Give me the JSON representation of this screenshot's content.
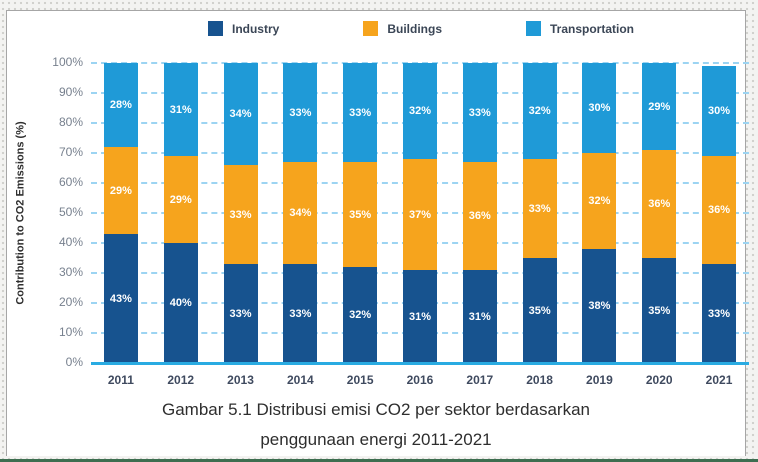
{
  "legend": {
    "items": [
      {
        "label": "Industry",
        "color": "#17538f"
      },
      {
        "label": "Buildings",
        "color": "#f6a41d"
      },
      {
        "label": "Transportation",
        "color": "#1f9ad7"
      }
    ]
  },
  "chart_data": {
    "type": "bar",
    "stacked": true,
    "orientation": "vertical",
    "categories": [
      "2011",
      "2012",
      "2013",
      "2014",
      "2015",
      "2016",
      "2017",
      "2018",
      "2019",
      "2020",
      "2021"
    ],
    "series": [
      {
        "name": "Industry",
        "color": "#17538f",
        "values": [
          43,
          40,
          33,
          33,
          32,
          31,
          31,
          35,
          38,
          35,
          33
        ]
      },
      {
        "name": "Buildings",
        "color": "#f6a41d",
        "values": [
          29,
          29,
          33,
          34,
          35,
          37,
          36,
          33,
          32,
          36,
          36
        ]
      },
      {
        "name": "Transportation",
        "color": "#1f9ad7",
        "values": [
          28,
          31,
          34,
          33,
          33,
          32,
          33,
          32,
          30,
          29,
          30
        ]
      }
    ],
    "ylabel": "Contribution to CO2 Emissions (%)",
    "ylim": [
      0,
      100
    ],
    "ytick_step": 10,
    "ytick_suffix": "%",
    "data_label_suffix": "%",
    "grid": "horizontal-dashed",
    "gridline_color": "#9cd4f2",
    "axis_line_color": "#29abe2",
    "legend_position": "top"
  },
  "caption": {
    "line1": "Gambar 5.1 Distribusi emisi CO2 per sektor berdasarkan",
    "line2": "penggunaan energi  2011-2021"
  },
  "accent_line_color": "#3d6e50"
}
